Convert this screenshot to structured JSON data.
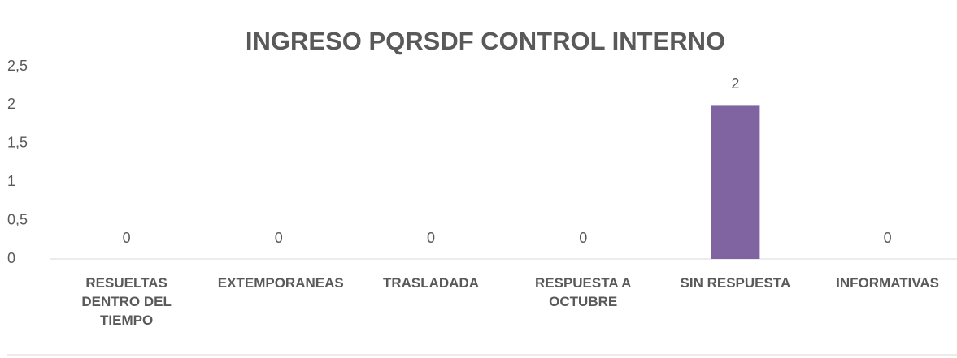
{
  "chart_data": {
    "type": "bar",
    "title": "INGRESO  PQRSDF CONTROL INTERNO",
    "categories": [
      "RESUELTAS DENTRO DEL TIEMPO",
      "EXTEMPORANEAS",
      "TRASLADADA",
      "RESPUESTA A OCTUBRE",
      "SIN RESPUESTA",
      "INFORMATIVAS"
    ],
    "values": [
      0,
      0,
      0,
      0,
      2,
      0
    ],
    "color": "#8064a2",
    "ylim": [
      0,
      2.5
    ],
    "yticks": [
      0,
      {
        "value": 0.5,
        "label": "0,5"
      },
      1,
      {
        "value": 1.5,
        "label": "1,5"
      },
      2,
      {
        "value": 2.5,
        "label": "2,5"
      }
    ],
    "grid": false
  }
}
